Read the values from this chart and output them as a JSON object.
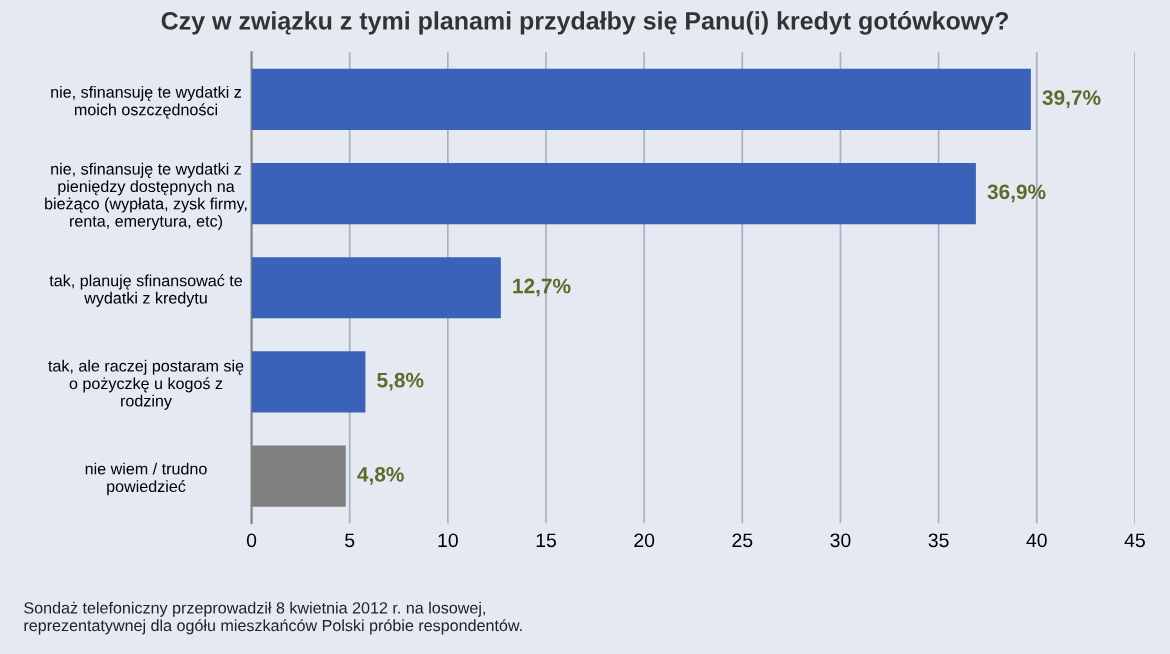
{
  "chart_data": {
    "type": "bar",
    "orientation": "horizontal",
    "title": "Czy w związku z tymi planami przydałby się Panu(i) kredyt gotówkowy?",
    "categories": [
      "nie, sfinansuję te wydatki z\nmoich oszczędności",
      "nie, sfinansuję te wydatki z\npieniędzy dostępnych na\nbieżąco (wypłata, zysk firmy,\nrenta, emerytura, etc)",
      "tak, planuję sfinansować te\nwydatki z kredytu",
      "tak, ale raczej postaram się\no pożyczkę u kogoś z\nrodziny",
      "nie wiem / trudno\npowiedzieć"
    ],
    "values": [
      39.7,
      36.9,
      12.7,
      5.8,
      4.8
    ],
    "colors": [
      "#3a62b8",
      "#3a62b8",
      "#3a62b8",
      "#3a62b8",
      "#7f7f7f"
    ],
    "value_labels": [
      "39,7%",
      "36,9%",
      "12,7%",
      "5,8%",
      "4,8%"
    ],
    "xlim": [
      0,
      45
    ],
    "xticks": [
      0,
      5,
      10,
      15,
      20,
      25,
      30,
      35,
      40,
      45
    ],
    "grid": "x",
    "annotations": [
      "Sondaż telefoniczny przeprowadził 8 kwietnia 2012 r. na losowej,\nreprezentatywnej dla ogółu mieszkańców Polski próbie respondentów."
    ]
  }
}
